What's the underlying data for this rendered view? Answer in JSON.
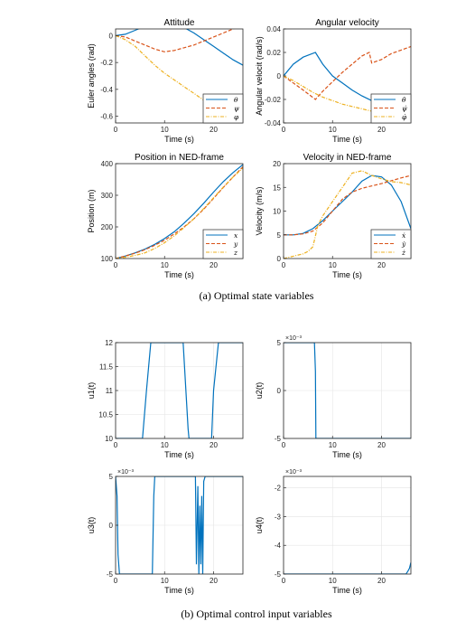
{
  "captions": {
    "a": "(a)  Optimal state variables",
    "b": "(b)  Optimal control input variables"
  },
  "colors": {
    "blue": "#0072BD",
    "red": "#D95319",
    "yellow": "#EDB120"
  },
  "chart_data": [
    {
      "id": "attitude",
      "type": "line",
      "title": "Attitude",
      "xlabel": "Time (s)",
      "ylabel": "Euler angles (rad)",
      "xlim": [
        0,
        26
      ],
      "ylim": [
        -0.65,
        0.05
      ],
      "xticks": [
        0,
        10,
        20
      ],
      "yticks": [
        0,
        -0.2,
        -0.4,
        -0.6
      ],
      "yticklabels": [
        "0",
        "-0.2",
        "-0.4",
        "-0.6"
      ],
      "legend": "bottom-right",
      "series": [
        {
          "name": "θ",
          "color": "#0072BD",
          "dash": "solid",
          "x": [
            0,
            2,
            4,
            6,
            8,
            10,
            12,
            14,
            16,
            18,
            20,
            22,
            24,
            26
          ],
          "y": [
            0,
            0.01,
            0.04,
            0.07,
            0.095,
            0.105,
            0.09,
            0.06,
            0.02,
            -0.03,
            -0.08,
            -0.13,
            -0.18,
            -0.22
          ]
        },
        {
          "name": "ψ",
          "color": "#D95319",
          "dash": "dash",
          "x": [
            0,
            2,
            4,
            6,
            8,
            10,
            12,
            14,
            16,
            18,
            20,
            22,
            24,
            26
          ],
          "y": [
            0,
            -0.01,
            -0.04,
            -0.07,
            -0.1,
            -0.12,
            -0.11,
            -0.09,
            -0.07,
            -0.04,
            -0.01,
            0.02,
            0.05,
            0.08
          ]
        },
        {
          "name": "φ",
          "color": "#EDB120",
          "dash": "dashdot",
          "x": [
            0,
            2,
            4,
            6,
            8,
            10,
            12,
            14,
            16,
            18,
            20,
            22,
            24,
            26
          ],
          "y": [
            0,
            -0.03,
            -0.08,
            -0.15,
            -0.22,
            -0.28,
            -0.33,
            -0.38,
            -0.43,
            -0.48,
            -0.53,
            -0.57,
            -0.61,
            -0.64
          ]
        }
      ]
    },
    {
      "id": "angvel",
      "type": "line",
      "title": "Angular velocity",
      "xlabel": "Time (s)",
      "ylabel": "Angular velocit (rad/s)",
      "xlim": [
        0,
        26
      ],
      "ylim": [
        -0.04,
        0.04
      ],
      "xticks": [
        0,
        10,
        20
      ],
      "yticks": [
        0.04,
        0.02,
        0,
        -0.02,
        -0.04
      ],
      "yticklabels": [
        "0.04",
        "0.02",
        "0",
        "-0.02",
        "-0.04"
      ],
      "legend": "bottom-right",
      "series": [
        {
          "name": "θ̇",
          "color": "#0072BD",
          "dash": "solid",
          "x": [
            0,
            2,
            4,
            6.5,
            8,
            10,
            12,
            14,
            16,
            18,
            20,
            22,
            24,
            26
          ],
          "y": [
            0,
            0.01,
            0.016,
            0.02,
            0.01,
            0,
            -0.006,
            -0.012,
            -0.017,
            -0.021,
            -0.025,
            -0.028,
            -0.031,
            -0.033
          ]
        },
        {
          "name": "ψ̇",
          "color": "#D95319",
          "dash": "dash",
          "x": [
            0,
            2,
            4,
            6.5,
            8,
            10,
            12,
            14,
            16,
            17.5,
            18,
            20,
            22,
            24,
            26
          ],
          "y": [
            0,
            -0.006,
            -0.012,
            -0.02,
            -0.013,
            -0.005,
            0.003,
            0.01,
            0.017,
            0.02,
            0.011,
            0.014,
            0.019,
            0.022,
            0.025
          ]
        },
        {
          "name": "φ̇",
          "color": "#EDB120",
          "dash": "dashdot",
          "x": [
            0,
            2,
            4,
            6,
            8,
            10,
            12,
            14,
            16,
            18,
            20,
            22,
            24,
            26
          ],
          "y": [
            0,
            -0.004,
            -0.009,
            -0.014,
            -0.018,
            -0.021,
            -0.024,
            -0.026,
            -0.028,
            -0.03,
            -0.031,
            -0.032,
            -0.033,
            -0.034
          ]
        }
      ]
    },
    {
      "id": "position",
      "type": "line",
      "title": "Position in NED-frame",
      "xlabel": "Time (s)",
      "ylabel": "Position (m)",
      "xlim": [
        0,
        26
      ],
      "ylim": [
        100,
        400
      ],
      "xticks": [
        0,
        10,
        20
      ],
      "yticks": [
        400,
        300,
        200,
        100
      ],
      "yticklabels": [
        "400",
        "300",
        "200",
        "100"
      ],
      "legend": "bottom-right",
      "series": [
        {
          "name": "x",
          "color": "#0072BD",
          "dash": "solid",
          "x": [
            0,
            2,
            4,
            6,
            8,
            10,
            12,
            14,
            16,
            18,
            20,
            22,
            24,
            26
          ],
          "y": [
            100,
            108,
            118,
            130,
            145,
            163,
            185,
            212,
            242,
            275,
            310,
            343,
            372,
            397
          ]
        },
        {
          "name": "y",
          "color": "#D95319",
          "dash": "dash",
          "x": [
            0,
            2,
            4,
            6,
            8,
            10,
            12,
            14,
            16,
            18,
            20,
            22,
            24,
            26
          ],
          "y": [
            100,
            108,
            117,
            128,
            142,
            158,
            178,
            200,
            226,
            256,
            290,
            325,
            358,
            390
          ]
        },
        {
          "name": "z",
          "color": "#EDB120",
          "dash": "dashdot",
          "x": [
            0,
            2,
            4,
            6,
            8,
            10,
            12,
            14,
            16,
            18,
            20,
            22,
            24,
            26
          ],
          "y": [
            100,
            104,
            110,
            118,
            132,
            150,
            172,
            198,
            226,
            258,
            292,
            326,
            358,
            386
          ]
        }
      ]
    },
    {
      "id": "velocity",
      "type": "line",
      "title": "Velocity in NED-frame",
      "xlabel": "Time (s)",
      "ylabel": "Velocity (m/s)",
      "xlim": [
        0,
        26
      ],
      "ylim": [
        0,
        20
      ],
      "xticks": [
        0,
        10,
        20
      ],
      "yticks": [
        20,
        15,
        10,
        5,
        0
      ],
      "yticklabels": [
        "20",
        "15",
        "10",
        "5",
        "0"
      ],
      "legend": "bottom-right",
      "series": [
        {
          "name": "ẋ",
          "color": "#0072BD",
          "dash": "solid",
          "x": [
            0,
            2,
            4,
            6,
            8,
            10,
            12,
            14,
            16,
            18,
            20,
            22,
            24,
            26
          ],
          "y": [
            5,
            5,
            5.3,
            6.3,
            8,
            10,
            12,
            14,
            16.3,
            17.5,
            17.2,
            15.5,
            12,
            6.3
          ]
        },
        {
          "name": "ẏ",
          "color": "#D95319",
          "dash": "dash",
          "x": [
            0,
            2,
            4,
            6,
            8,
            10,
            12,
            14,
            16,
            18,
            20,
            22,
            24,
            26
          ],
          "y": [
            5,
            5,
            5.2,
            5.8,
            7.5,
            10,
            12.5,
            14,
            14.8,
            15.3,
            15.8,
            16.4,
            17,
            17.5
          ]
        },
        {
          "name": "ż",
          "color": "#EDB120",
          "dash": "dashdot",
          "x": [
            0,
            2,
            4,
            5,
            6,
            7,
            8,
            10,
            12,
            14,
            16,
            18,
            20,
            22,
            24,
            26
          ],
          "y": [
            0,
            0.5,
            1,
            1.5,
            2.5,
            7,
            9,
            12,
            15,
            18,
            18.5,
            17.5,
            16.8,
            16.2,
            16,
            15.5
          ]
        }
      ]
    },
    {
      "id": "u1",
      "type": "line",
      "title": "",
      "xlabel": "Time (s)",
      "ylabel": "u1(t)",
      "xlim": [
        0,
        26
      ],
      "ylim": [
        10,
        12
      ],
      "xticks": [
        0,
        10,
        20
      ],
      "yticks": [
        12,
        11.5,
        11,
        10.5,
        10
      ],
      "yticklabels": [
        "12",
        "11.5",
        "11",
        "10.5",
        "10"
      ],
      "grid": true,
      "series": [
        {
          "name": "",
          "color": "#0072BD",
          "dash": "solid",
          "x": [
            0,
            5.5,
            6.3,
            7.2,
            10,
            13.8,
            14.8,
            15,
            19.6,
            20,
            21,
            22,
            26
          ],
          "y": [
            10,
            10,
            11,
            12,
            12,
            12,
            10.2,
            10,
            10,
            11,
            12,
            12,
            12
          ]
        }
      ]
    },
    {
      "id": "u2",
      "type": "line",
      "title": "",
      "xlabel": "Time (s)",
      "ylabel": "u2(t)",
      "exponent": "×10⁻³",
      "xlim": [
        0,
        26
      ],
      "ylim": [
        -5,
        5
      ],
      "xticks": [
        0,
        10,
        20
      ],
      "yticks": [
        5,
        0,
        -5
      ],
      "yticklabels": [
        "5",
        "0",
        "-5"
      ],
      "grid": true,
      "series": [
        {
          "name": "",
          "color": "#0072BD",
          "dash": "solid",
          "x": [
            0,
            6.3,
            6.5,
            6.6,
            7,
            26
          ],
          "y": [
            5,
            5,
            2,
            -5,
            -5,
            -5
          ]
        }
      ]
    },
    {
      "id": "u3",
      "type": "line",
      "title": "",
      "xlabel": "Time (s)",
      "ylabel": "u3(t)",
      "exponent": "×10⁻³",
      "xlim": [
        0,
        26
      ],
      "ylim": [
        -5,
        5
      ],
      "xticks": [
        0,
        10,
        20
      ],
      "yticks": [
        5,
        0,
        -5
      ],
      "yticklabels": [
        "5",
        "0",
        "-5"
      ],
      "grid": true,
      "series": [
        {
          "name": "",
          "color": "#0072BD",
          "dash": "solid",
          "x": [
            0,
            0.3,
            0.5,
            0.8,
            1,
            2,
            7.5,
            7.8,
            8,
            16.3,
            16.5,
            16.8,
            17,
            17.2,
            17.4,
            17.6,
            17.8,
            18,
            18.3,
            26
          ],
          "y": [
            5,
            3,
            -3,
            -5,
            -5,
            -5,
            -5,
            3,
            5,
            5,
            -4,
            4,
            -5,
            2,
            -4,
            3,
            -5,
            4.5,
            5,
            5
          ]
        }
      ]
    },
    {
      "id": "u4",
      "type": "line",
      "title": "",
      "xlabel": "Time (s)",
      "ylabel": "u4(t)",
      "exponent": "×10⁻³",
      "xlim": [
        0,
        26
      ],
      "ylim": [
        -5,
        -1.6
      ],
      "xticks": [
        0,
        10,
        20
      ],
      "yticks": [
        -2,
        -3,
        -4,
        -5
      ],
      "yticklabels": [
        "-2",
        "-3",
        "-4",
        "-5"
      ],
      "grid": true,
      "series": [
        {
          "name": "",
          "color": "#0072BD",
          "dash": "solid",
          "x": [
            0,
            25,
            25.4,
            25.7,
            26
          ],
          "y": [
            -5,
            -5,
            -4.9,
            -4.8,
            -4.6
          ]
        }
      ]
    }
  ]
}
